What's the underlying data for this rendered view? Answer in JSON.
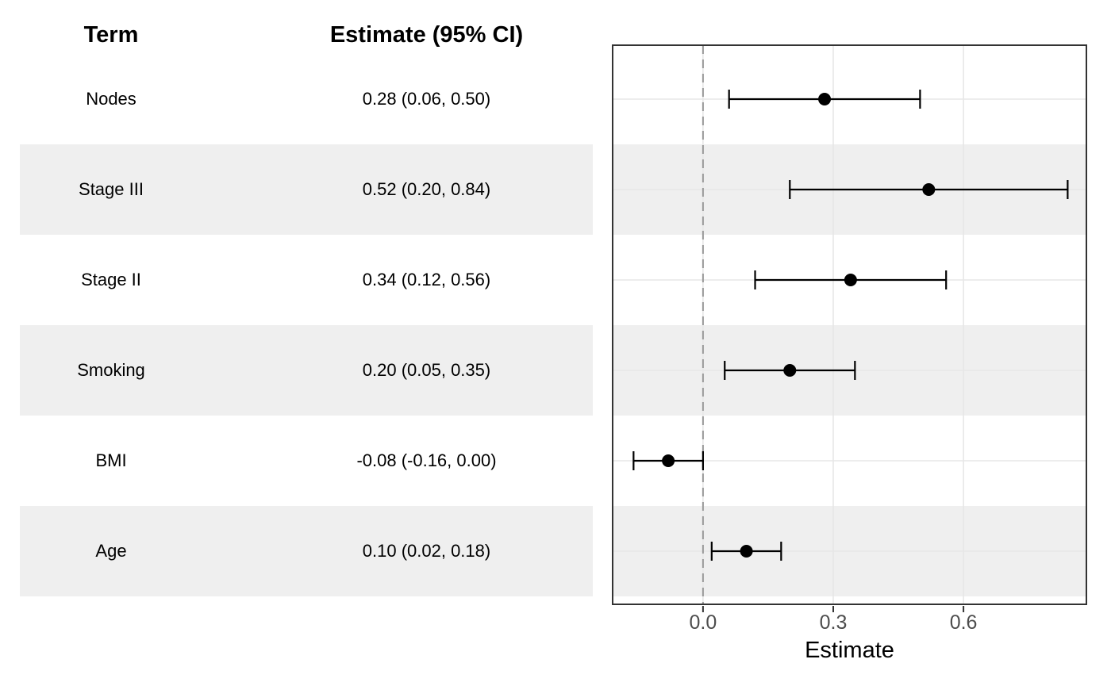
{
  "table": {
    "headers": {
      "term": "Term",
      "estimate": "Estimate (95% CI)"
    },
    "rows": [
      {
        "term": "Nodes",
        "estimate_label": "0.28 (0.06, 0.50)",
        "striped": false
      },
      {
        "term": "Stage III",
        "estimate_label": "0.52 (0.20, 0.84)",
        "striped": true
      },
      {
        "term": "Stage II",
        "estimate_label": "0.34 (0.12, 0.56)",
        "striped": false
      },
      {
        "term": "Smoking",
        "estimate_label": "0.20 (0.05, 0.35)",
        "striped": true
      },
      {
        "term": "BMI",
        "estimate_label": "-0.08 (-0.16, 0.00)",
        "striped": false
      },
      {
        "term": "Age",
        "estimate_label": "0.10 (0.02, 0.18)",
        "striped": true
      }
    ]
  },
  "chart_data": {
    "type": "scatter",
    "subtype": "forest-dot-whisker",
    "title": "",
    "xlabel": "Estimate",
    "ylabel": "",
    "categories": [
      "Nodes",
      "Stage III",
      "Stage II",
      "Smoking",
      "BMI",
      "Age"
    ],
    "series": [
      {
        "name": "Estimate (95% CI)",
        "points": [
          {
            "term": "Nodes",
            "estimate": 0.28,
            "ci_low": 0.06,
            "ci_high": 0.5
          },
          {
            "term": "Stage III",
            "estimate": 0.52,
            "ci_low": 0.2,
            "ci_high": 0.84
          },
          {
            "term": "Stage II",
            "estimate": 0.34,
            "ci_low": 0.12,
            "ci_high": 0.56
          },
          {
            "term": "Smoking",
            "estimate": 0.2,
            "ci_low": 0.05,
            "ci_high": 0.35
          },
          {
            "term": "BMI",
            "estimate": -0.08,
            "ci_low": -0.16,
            "ci_high": 0.0
          },
          {
            "term": "Age",
            "estimate": 0.1,
            "ci_low": 0.02,
            "ci_high": 0.18
          }
        ]
      }
    ],
    "x_ticks": [
      0.0,
      0.3,
      0.6
    ],
    "x_tick_labels": [
      "0.0",
      "0.3",
      "0.6"
    ],
    "xlim": [
      -0.21,
      0.885
    ],
    "reference_line_x": 0,
    "grid": true,
    "legend": "none",
    "striped_rows": [
      "Stage III",
      "Smoking",
      "Age"
    ]
  },
  "colors": {
    "background": "#ffffff",
    "stripe": "#efefef",
    "gridline": "#e7e7e7",
    "reference_line": "#999999",
    "panel_border": "#333333",
    "point": "#000000",
    "errorbar": "#000000",
    "tick": "#333333",
    "tick_label": "#4d4d4d",
    "axis_title": "#000000",
    "table_text": "#000000"
  }
}
